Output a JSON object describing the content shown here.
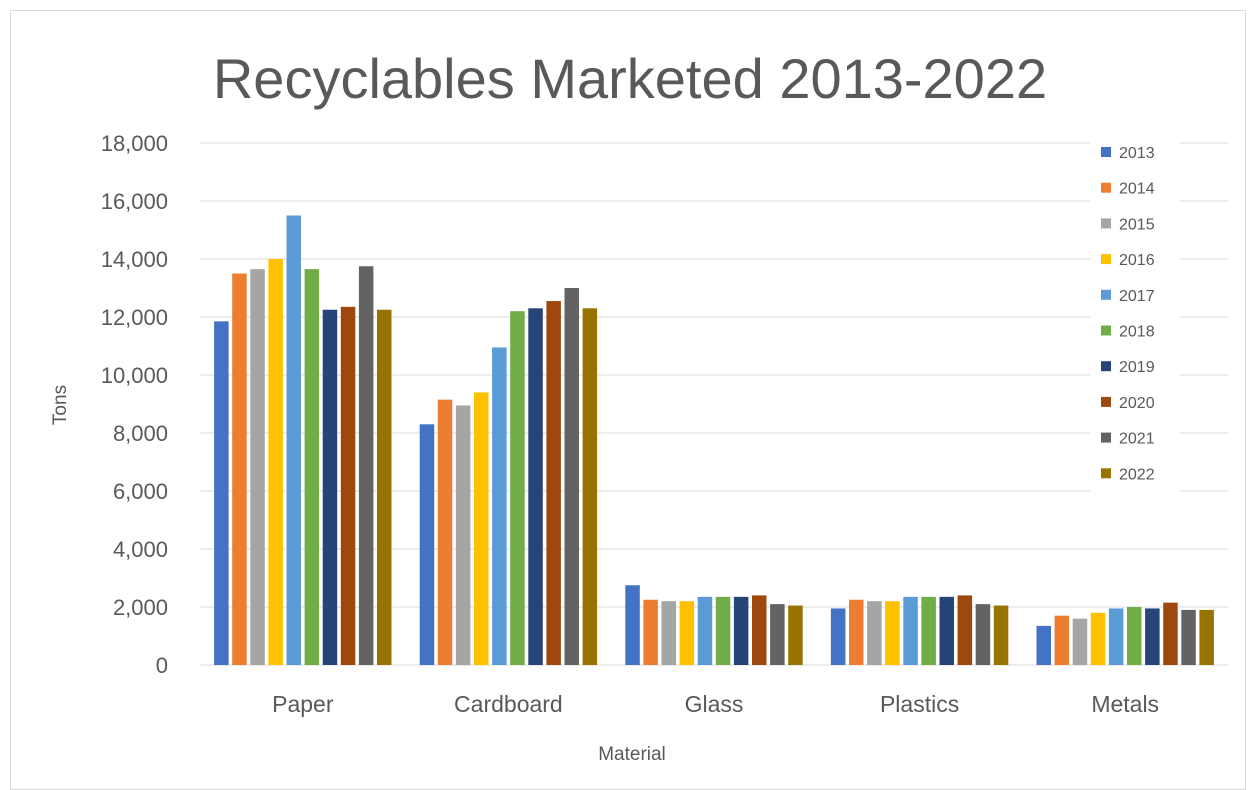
{
  "chart_data": {
    "type": "bar",
    "title": "Recyclables Marketed 2013-2022",
    "xlabel": "Material",
    "ylabel": "Tons",
    "ylim": [
      0,
      18000
    ],
    "yticks": [
      0,
      2000,
      4000,
      6000,
      8000,
      10000,
      12000,
      14000,
      16000,
      18000
    ],
    "ytick_labels": [
      "0",
      "2,000",
      "4,000",
      "6,000",
      "8,000",
      "10,000",
      "12,000",
      "14,000",
      "16,000",
      "18,000"
    ],
    "grid": true,
    "legend_position": "right",
    "categories": [
      "Paper",
      "Cardboard",
      "Glass",
      "Plastics",
      "Metals"
    ],
    "series": [
      {
        "name": "2013",
        "color": "#4472C4",
        "values": [
          11850,
          8300,
          2750,
          1950,
          1350
        ]
      },
      {
        "name": "2014",
        "color": "#ED7D31",
        "values": [
          13500,
          9150,
          2250,
          2250,
          1700
        ]
      },
      {
        "name": "2015",
        "color": "#A5A5A5",
        "values": [
          13650,
          8950,
          2200,
          2200,
          1600
        ]
      },
      {
        "name": "2016",
        "color": "#FFC000",
        "values": [
          14000,
          9400,
          2200,
          2200,
          1800
        ]
      },
      {
        "name": "2017",
        "color": "#5B9BD5",
        "values": [
          15500,
          10950,
          2350,
          2350,
          1950
        ]
      },
      {
        "name": "2018",
        "color": "#70AD47",
        "values": [
          13650,
          12200,
          2350,
          2350,
          2000
        ]
      },
      {
        "name": "2019",
        "color": "#264478",
        "values": [
          12250,
          12300,
          2350,
          2350,
          1950
        ]
      },
      {
        "name": "2020",
        "color": "#9E480E",
        "values": [
          12350,
          12550,
          2400,
          2400,
          2150
        ]
      },
      {
        "name": "2021",
        "color": "#636363",
        "values": [
          13750,
          13000,
          2100,
          2100,
          1900
        ]
      },
      {
        "name": "2022",
        "color": "#997300",
        "values": [
          12250,
          12300,
          2050,
          2050,
          1900
        ]
      }
    ]
  }
}
